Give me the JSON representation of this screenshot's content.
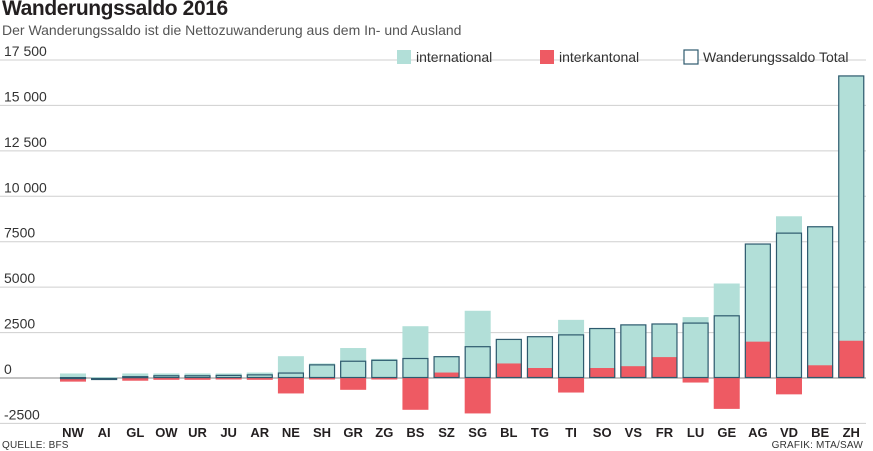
{
  "chart_data": {
    "type": "bar",
    "title": "Wanderungssaldo 2016",
    "subtitle": "Der Wanderungssaldo ist die Nettozuwanderung aus dem In- und Ausland",
    "categories": [
      "NW",
      "AI",
      "GL",
      "OW",
      "UR",
      "JU",
      "AR",
      "NE",
      "SH",
      "GR",
      "ZG",
      "BS",
      "SZ",
      "SG",
      "BL",
      "TG",
      "TI",
      "SO",
      "VS",
      "FR",
      "LU",
      "GE",
      "AG",
      "VD",
      "BE",
      "ZH"
    ],
    "series": [
      {
        "name": "international",
        "color": "#b2dfd8",
        "values": [
          250,
          50,
          250,
          250,
          250,
          250,
          300,
          1200,
          800,
          1650,
          1050,
          2850,
          1200,
          3700,
          2150,
          2300,
          3200,
          2750,
          2950,
          3000,
          3350,
          5200,
          7400,
          8900,
          8350,
          16650
        ]
      },
      {
        "name": "interkantonal",
        "color": "#ee5a63",
        "values": [
          -200,
          -70,
          -150,
          -100,
          -100,
          -80,
          -100,
          -850,
          -50,
          -650,
          -50,
          -1750,
          300,
          -1950,
          800,
          550,
          -800,
          550,
          650,
          1150,
          -250,
          -1700,
          2000,
          -900,
          700,
          2050
        ]
      },
      {
        "name": "Wanderungssaldo Total",
        "color": "#2e5a6e",
        "values": [
          50,
          -20,
          100,
          150,
          150,
          170,
          200,
          300,
          750,
          950,
          1000,
          1100,
          1200,
          1750,
          2150,
          2300,
          2400,
          2750,
          2950,
          3000,
          3050,
          3450,
          7400,
          8000,
          8350,
          16650
        ]
      }
    ],
    "yticks": [
      -2500,
      0,
      2500,
      5000,
      7500,
      10000,
      12500,
      15000,
      17500
    ],
    "ytick_labels": [
      "-2500",
      "0",
      "2500",
      "5000",
      "7500",
      "10 000",
      "12 500",
      "15 000",
      "17 500"
    ],
    "ylim": [
      -2500,
      17500
    ],
    "legend_position": "top-right",
    "grid": true
  },
  "source": "QUELLE: BFS",
  "credit": "GRAFIK: MTA/SAW"
}
